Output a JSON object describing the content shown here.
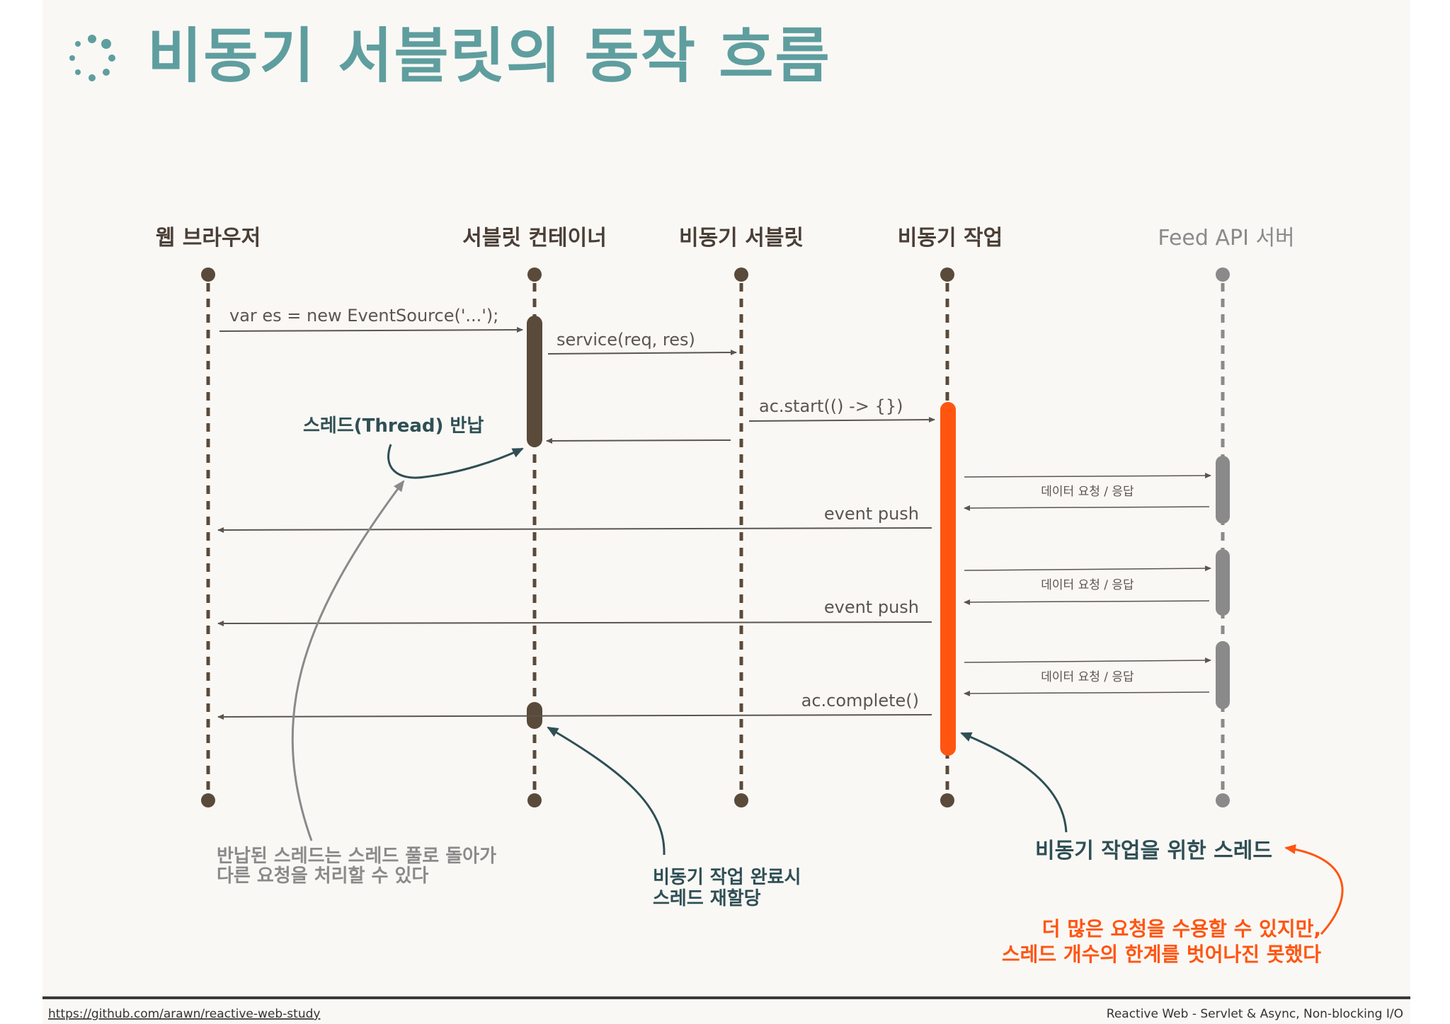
{
  "title": "비동기 서블릿의 동작 흐름",
  "actors": [
    {
      "id": "browser",
      "label": "웹 브라우저"
    },
    {
      "id": "container",
      "label": "서블릿 컨테이너"
    },
    {
      "id": "async_servlet",
      "label": "비동기 서블릿"
    },
    {
      "id": "async_task",
      "label": "비동기 작업"
    },
    {
      "id": "feed_api",
      "label": "Feed API 서버"
    }
  ],
  "messages": {
    "event_source": "var es = new EventSource('...');",
    "service": "service(req, res)",
    "ac_start": "ac.start(() -> {})",
    "data_req_1": "데이터 요청 / 응답",
    "event_push_1": "event push",
    "data_req_2": "데이터 요청 / 응답",
    "event_push_2": "event push",
    "data_req_3": "데이터 요청 / 응답",
    "ac_complete": "ac.complete()"
  },
  "annotations": {
    "thread_return": "스레드(Thread) 반납",
    "returned_thread_line1": "반납된 스레드는 스레드 풀로 돌아가",
    "returned_thread_line2": "다른 요청을 처리할 수 있다",
    "reassign_line1": "비동기 작업 완료시",
    "reassign_line2": "스레드 재할당",
    "async_thread": "비동기 작업을 위한 스레드",
    "limit_line1": "더 많은 요청을 수용할 수 있지만,",
    "limit_line2": "스레드 개수의 한계를 벗어나진 못했다"
  },
  "footer": {
    "link": "https://github.com/arawn/reactive-web-study",
    "caption": "Reactive Web - Servlet & Async, Non-blocking I/O"
  },
  "colors": {
    "title": "#5f9e9f",
    "lifeline": "#5a4a3a",
    "activation_dark": "#5a4a3a",
    "activation_orange": "#ff5511",
    "activation_grey": "#8a8a8a",
    "teal_text": "#2f4f55",
    "orange_text": "#ff5511"
  }
}
